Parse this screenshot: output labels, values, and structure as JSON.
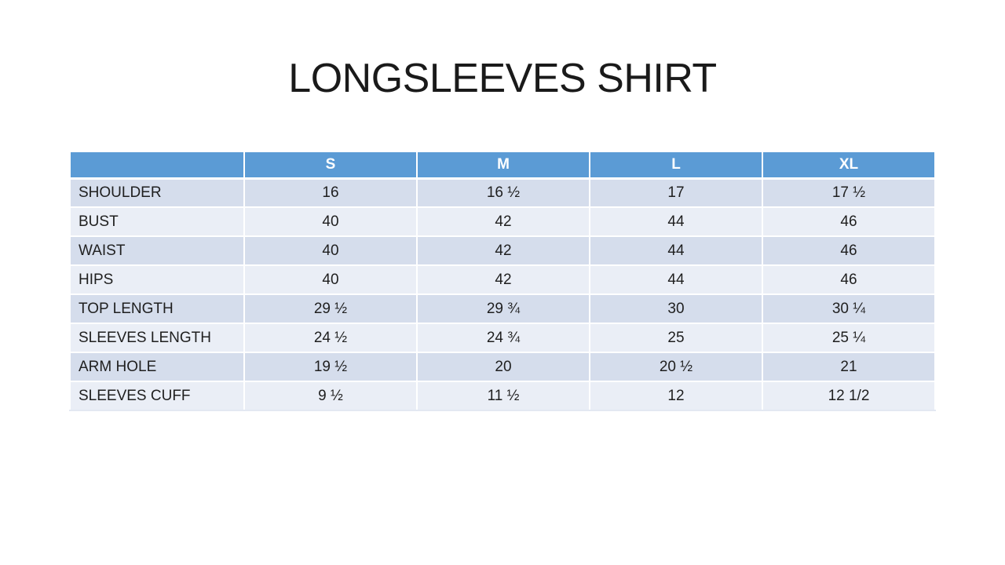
{
  "page": {
    "background": "#FFFFFF"
  },
  "colors": {
    "header_bg": "#5B9BD5",
    "header_text": "#FFFFFF",
    "band_dark": "#D5DDEC",
    "band_light": "#EAEEF6",
    "cell_text": "#1F1F1F",
    "title_text": "#1A1A1A"
  },
  "chart_data": {
    "type": "table",
    "title": "LONGSLEEVES SHIRT",
    "columns": [
      "",
      "S",
      "M",
      "L",
      "XL"
    ],
    "rows": [
      {
        "label": "SHOULDER",
        "values": [
          "16",
          "16 ½",
          "17",
          "17 ½"
        ]
      },
      {
        "label": "BUST",
        "values": [
          "40",
          "42",
          "44",
          "46"
        ]
      },
      {
        "label": "WAIST",
        "values": [
          "40",
          "42",
          "44",
          "46"
        ]
      },
      {
        "label": "HIPS",
        "values": [
          "40",
          "42",
          "44",
          "46"
        ]
      },
      {
        "label": "TOP LENGTH",
        "values": [
          "29 ½",
          "29 ¾",
          "30",
          "30 ¼"
        ]
      },
      {
        "label": "SLEEVES LENGTH",
        "values": [
          "24 ½",
          "24 ¾",
          "25",
          "25 ¼"
        ]
      },
      {
        "label": "ARM HOLE",
        "values": [
          "19 ½",
          "20",
          "20 ½",
          "21"
        ]
      },
      {
        "label": "SLEEVES CUFF",
        "values": [
          "9 ½",
          "11 ½",
          "12",
          "12 1/2"
        ]
      }
    ],
    "layout": {
      "banded_rows": true,
      "header_row": true,
      "first_column_is_labels": true
    }
  }
}
